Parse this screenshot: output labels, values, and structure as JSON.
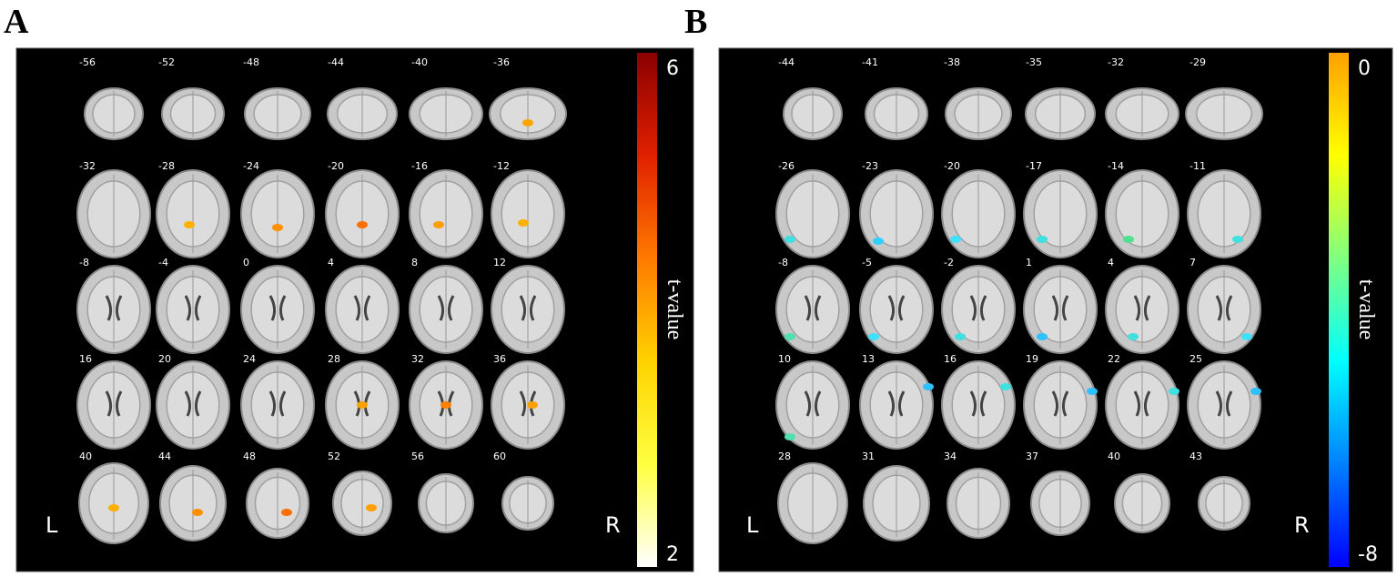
{
  "panels": [
    {
      "label": "A",
      "slices": [
        "-56",
        "-52",
        "-48",
        "-44",
        "-40",
        "-36",
        "-32",
        "-28",
        "-24",
        "-20",
        "-16",
        "-12",
        "-8",
        "-4",
        "0",
        "4",
        "8",
        "12",
        "16",
        "20",
        "24",
        "28",
        "32",
        "36",
        "40",
        "44",
        "48",
        "52",
        "56",
        "60"
      ],
      "left": "L",
      "right": "R",
      "colorbar": {
        "title": "t-value",
        "top_label": "6",
        "bottom_label": "2",
        "colors": [
          "#8b0000",
          "#e02000",
          "#ff7a00",
          "#ffd200",
          "#ffff40",
          "#ffffff"
        ]
      }
    },
    {
      "label": "B",
      "slices": [
        "-44",
        "-41",
        "-38",
        "-35",
        "-32",
        "-29",
        "-26",
        "-23",
        "-20",
        "-17",
        "-14",
        "-11",
        "-8",
        "-5",
        "-2",
        "1",
        "4",
        "7",
        "10",
        "13",
        "16",
        "19",
        "22",
        "25",
        "28",
        "31",
        "34",
        "37",
        "40",
        "43"
      ],
      "left": "L",
      "right": "R",
      "colorbar": {
        "title": "t-value",
        "top_label": "0",
        "bottom_label": "-8",
        "colors": [
          "#ffa000",
          "#ffff00",
          "#80ff80",
          "#00ffff",
          "#0080ff",
          "#0000ff"
        ]
      }
    }
  ]
}
